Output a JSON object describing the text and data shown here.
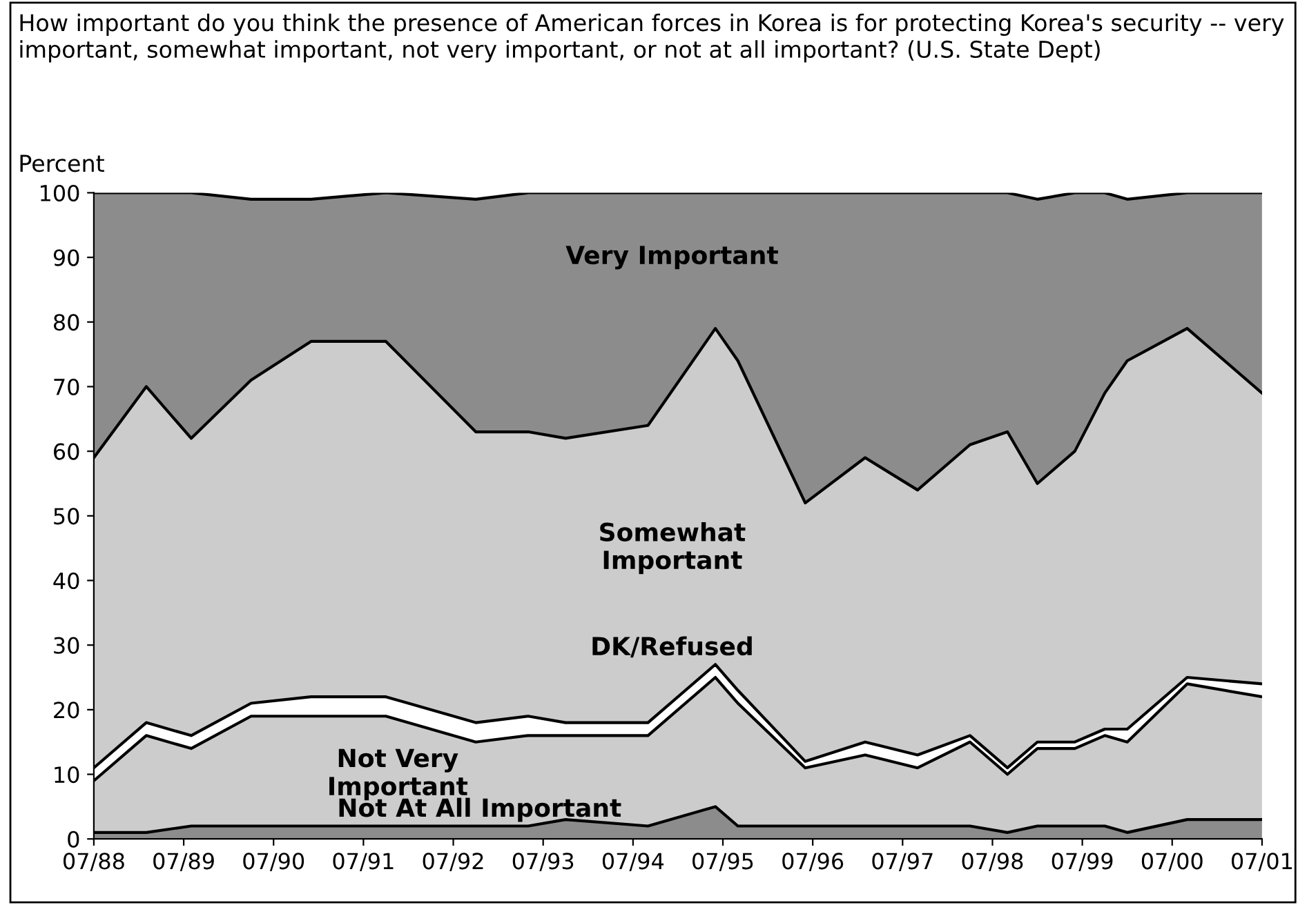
{
  "chart_data": {
    "type": "area",
    "stacked": true,
    "title": "How important do you think the presence of American forces in Korea is for protecting Korea's security -- very important, somewhat important, not very important, or not at all important? (U.S. State Dept)",
    "ylabel": "Percent",
    "x": [
      "1988-07",
      "1989-02",
      "1989-08",
      "1990-04",
      "1990-12",
      "1991-10",
      "1992-10",
      "1993-05",
      "1993-10",
      "1994-09",
      "1995-06",
      "1995-09",
      "1996-06",
      "1997-02",
      "1997-09",
      "1998-04",
      "1998-09",
      "1999-01",
      "1999-06",
      "1999-10",
      "2000-01",
      "2000-09",
      "2001-07"
    ],
    "series": [
      {
        "name": "Not At All Important",
        "color": "#8c8c8c",
        "values": [
          1,
          1,
          2,
          2,
          2,
          2,
          2,
          2,
          3,
          2,
          5,
          2,
          2,
          2,
          2,
          2,
          1,
          2,
          2,
          2,
          1,
          3,
          3
        ]
      },
      {
        "name": "Not Very Important",
        "color": "#cccccc",
        "values": [
          8,
          15,
          12,
          17,
          17,
          17,
          13,
          14,
          13,
          14,
          20,
          19,
          9,
          11,
          9,
          13,
          9,
          12,
          12,
          14,
          14,
          21,
          19
        ]
      },
      {
        "name": "DK/Refused",
        "color": "#ffffff",
        "values": [
          2,
          2,
          2,
          2,
          3,
          3,
          3,
          3,
          2,
          2,
          2,
          2,
          1,
          2,
          2,
          1,
          1,
          1,
          1,
          1,
          2,
          1,
          2
        ]
      },
      {
        "name": "Somewhat Important",
        "color": "#cccccc",
        "values": [
          48,
          52,
          46,
          50,
          55,
          55,
          45,
          44,
          44,
          46,
          52,
          51,
          40,
          44,
          41,
          45,
          52,
          40,
          45,
          52,
          57,
          54,
          45
        ]
      },
      {
        "name": "Very Important",
        "color": "#8c8c8c",
        "values": [
          41,
          30,
          38,
          28,
          22,
          23,
          36,
          37,
          38,
          36,
          21,
          26,
          48,
          41,
          46,
          39,
          37,
          44,
          40,
          31,
          25,
          21,
          31
        ]
      }
    ],
    "xlim": [
      "1988-07",
      "2001-07"
    ],
    "xticks": [
      {
        "value": "1988-07",
        "label": "07/88"
      },
      {
        "value": "1989-07",
        "label": "07/89"
      },
      {
        "value": "1990-07",
        "label": "07/90"
      },
      {
        "value": "1991-07",
        "label": "07/91"
      },
      {
        "value": "1992-07",
        "label": "07/92"
      },
      {
        "value": "1993-07",
        "label": "07/93"
      },
      {
        "value": "1994-07",
        "label": "07/94"
      },
      {
        "value": "1995-07",
        "label": "07/95"
      },
      {
        "value": "1996-07",
        "label": "07/96"
      },
      {
        "value": "1997-07",
        "label": "07/97"
      },
      {
        "value": "1998-07",
        "label": "07/98"
      },
      {
        "value": "1999-07",
        "label": "07/99"
      },
      {
        "value": "2000-07",
        "label": "07/00"
      },
      {
        "value": "2001-07",
        "label": "07/01"
      }
    ],
    "ylim": [
      0,
      100
    ],
    "yticks": [
      0,
      10,
      20,
      30,
      40,
      50,
      60,
      70,
      80,
      90,
      100
    ],
    "grid": false,
    "legend": false
  }
}
